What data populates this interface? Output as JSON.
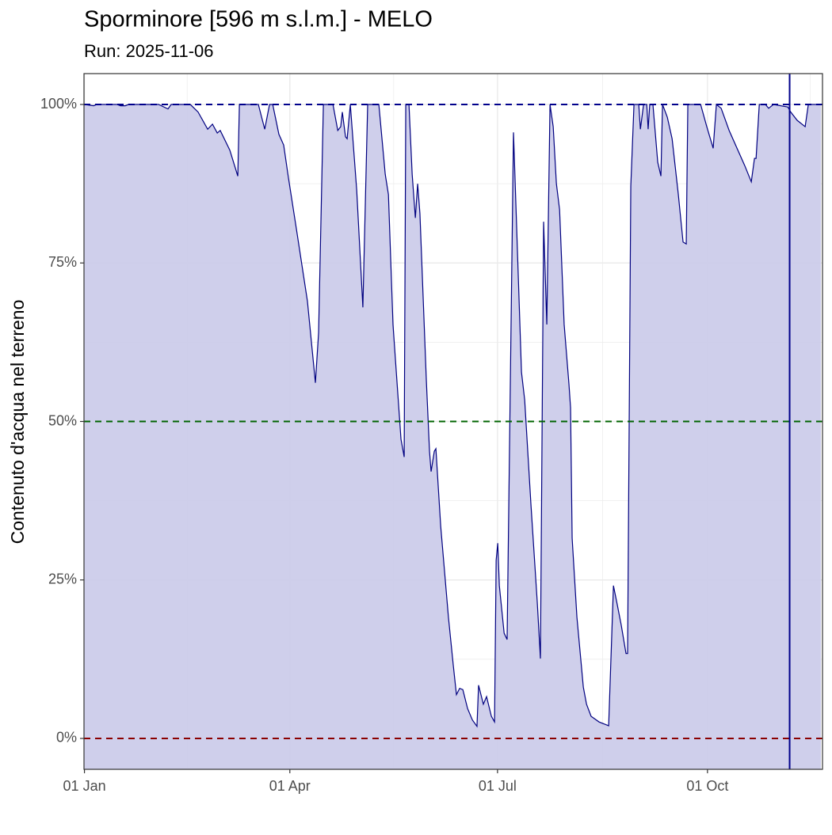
{
  "chart_data": {
    "type": "area",
    "title": "Sporminore [596 m s.l.m.] - MELO",
    "subtitle": "Run: 2025-11-06",
    "y_label": "Contenuto d'acqua nel terreno",
    "x": [
      0,
      4.0,
      5.4,
      14.4,
      15.8,
      17.9,
      19.3,
      32.5,
      36.6,
      38.0,
      46.4,
      49.8,
      54.0,
      56.1,
      58.2,
      59.5,
      63.7,
      67.2,
      67.9,
      76.2,
      79.0,
      81.1,
      82.5,
      85.2,
      87.3,
      89.4,
      92.9,
      97.7,
      101.2,
      102.6,
      104.7,
      108.9,
      111.0,
      112.3,
      113.0,
      114.4,
      115.1,
      116.5,
      119.3,
      122.0,
      124.1,
      129.0,
      131.8,
      133.2,
      135.2,
      138.7,
      140.1,
      140.8,
      142.2,
      143.6,
      145.0,
      146.0,
      147.0,
      149.8,
      151.2,
      151.9,
      153.3,
      154.0,
      156.1,
      159.5,
      161.6,
      163.0,
      164.4,
      165.8,
      167.9,
      170.0,
      172.0,
      172.7,
      174.8,
      176.2,
      178.3,
      179.7,
      180.4,
      181.1,
      181.8,
      183.9,
      185.2,
      188.0,
      191.5,
      192.9,
      195.7,
      198.4,
      199.8,
      201.2,
      202.6,
      204.0,
      205.4,
      206.8,
      208.2,
      210.2,
      212.3,
      213.0,
      213.7,
      215.8,
      218.6,
      220.0,
      222.0,
      225.5,
      229.7,
      231.8,
      233.2,
      235.2,
      237.3,
      238.0,
      239.4,
      240.8,
      242.9,
      243.6,
      245.0,
      246.4,
      247.0,
      247.7,
      249.1,
      251.2,
      252.6,
      253.3,
      255.4,
      257.5,
      260.2,
      262.3,
      263.7,
      264.4,
      270.0,
      272.7,
      275.5,
      276.9,
      279.0,
      282.5,
      289.4,
      292.2,
      293.6,
      294.3,
      295.7,
      298.4,
      299.8,
      301.9,
      308.2,
      309.5,
      312.3,
      315.8,
      317.2,
      322.7
    ],
    "series": [
      {
        "color": "#000080",
        "fill": "#ccccea",
        "values": [
          100,
          99.8,
          100,
          100,
          99.8,
          99.8,
          100,
          100,
          99.3,
          100,
          100,
          98.8,
          96.1,
          96.9,
          95.5,
          95.9,
          92.8,
          88.7,
          100,
          100,
          96.1,
          100,
          100,
          95.3,
          93.6,
          88.4,
          80.3,
          69.0,
          56.1,
          64.0,
          100,
          100,
          95.9,
          96.5,
          98.8,
          94.9,
          94.6,
          100,
          86.5,
          68.0,
          100,
          100,
          89.0,
          85.8,
          65.3,
          47.2,
          44.4,
          100,
          100,
          89.0,
          82.1,
          87.5,
          82.8,
          56.6,
          45.3,
          42.1,
          45.3,
          45.7,
          33.5,
          19.1,
          11.6,
          6.9,
          7.9,
          7.7,
          4.7,
          2.9,
          1.9,
          8.4,
          5.4,
          6.6,
          3.5,
          2.6,
          28.1,
          30.8,
          24.1,
          16.6,
          15.6,
          95.6,
          57.8,
          53.4,
          36.6,
          21.6,
          12.6,
          81.5,
          65.3,
          100,
          96.5,
          87.5,
          83.4,
          65.3,
          55.9,
          52.2,
          31.6,
          19.1,
          8.1,
          5.4,
          3.5,
          2.6,
          2.0,
          24.1,
          21.6,
          17.9,
          13.4,
          13.4,
          87.1,
          100,
          100,
          96.1,
          100,
          100,
          96.1,
          100,
          100,
          90.9,
          88.7,
          100,
          98.0,
          94.6,
          85.9,
          78.3,
          78.0,
          100,
          100,
          96.5,
          93.1,
          100,
          99.4,
          95.9,
          90.3,
          87.8,
          91.5,
          91.5,
          100,
          100,
          99.4,
          100,
          99.6,
          98.8,
          97.5,
          96.5,
          100,
          100
        ]
      }
    ],
    "xlim": [
      -0.2,
      323.4
    ],
    "xticks": [
      {
        "value": 0,
        "label": "01 Jan"
      },
      {
        "value": 90,
        "label": "01 Apr"
      },
      {
        "value": 181,
        "label": "01 Jul"
      },
      {
        "value": 273,
        "label": "01 Oct"
      }
    ],
    "xticks_minor": [
      45,
      135.5,
      227,
      318
    ],
    "ylim": [
      -4.87,
      104.87
    ],
    "yticks": [
      {
        "value": 0,
        "label": "0%"
      },
      {
        "value": 25,
        "label": "25%"
      },
      {
        "value": 50,
        "label": "50%"
      },
      {
        "value": 75,
        "label": "75%"
      },
      {
        "value": 100,
        "label": "100%"
      }
    ],
    "yticks_minor": [
      12.5,
      37.5,
      62.5,
      87.5
    ],
    "grid": true,
    "hlines": [
      {
        "value": 100,
        "color": "#00008b"
      },
      {
        "value": 50,
        "color": "#006400"
      },
      {
        "value": 0,
        "color": "#8b0000"
      }
    ],
    "vlines": [
      {
        "value": 309,
        "color": "#00008b"
      }
    ]
  }
}
